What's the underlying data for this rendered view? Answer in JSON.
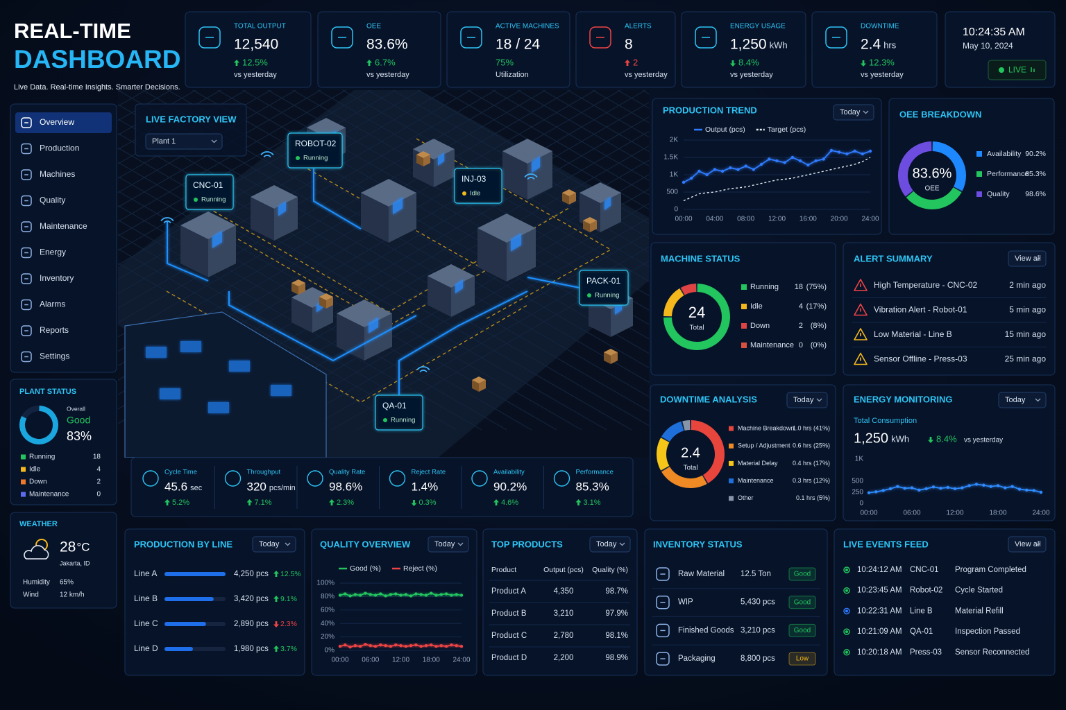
{
  "header": {
    "title": "REAL-TIME",
    "title_accent": "DASHBOARD",
    "tagline": "Live Data. Real-time Insights. Smarter Decisions."
  },
  "kpis": [
    {
      "label": "TOTAL OUTPUT",
      "value": "12,540",
      "change": "12.5%",
      "trend": "up",
      "color": "#22c55e",
      "note": "vs yesterday"
    },
    {
      "label": "OEE",
      "value": "83.6%",
      "change": "6.7%",
      "trend": "up",
      "color": "#22c55e",
      "note": "vs yesterday"
    },
    {
      "label": "ACTIVE MACHINES",
      "value": "18 / 24",
      "change": "75%",
      "color": "#22c55e",
      "note": "Utilization"
    },
    {
      "label": "ALERTS",
      "value": "8",
      "change": "2",
      "trend": "up",
      "color": "#ef4444",
      "note": "vs yesterday"
    },
    {
      "label": "ENERGY USAGE",
      "value": "1,250",
      "unit": "kWh",
      "change": "8.4%",
      "trend": "down",
      "color": "#22c55e",
      "note": "vs yesterday"
    },
    {
      "label": "DOWNTIME",
      "value": "2.4",
      "unit": "hrs",
      "change": "12.3%",
      "trend": "down",
      "color": "#22c55e",
      "note": "vs yesterday"
    }
  ],
  "clock": {
    "time": "10:24:35 AM",
    "date": "May 10, 2024",
    "status": "LIVE"
  },
  "nav": {
    "active": 0,
    "items": [
      "Overview",
      "Production",
      "Machines",
      "Quality",
      "Maintenance",
      "Energy",
      "Inventory",
      "Alarms",
      "Reports",
      "Settings"
    ]
  },
  "plant_status": {
    "title": "PLANT STATUS",
    "overall_label": "Overall",
    "status": "Good",
    "score": 83,
    "score_label": "83%",
    "items": [
      {
        "label": "Running",
        "count": 18,
        "color": "#22c55e"
      },
      {
        "label": "Idle",
        "count": 4,
        "color": "#f5b81c"
      },
      {
        "label": "Down",
        "count": 2,
        "color": "#f0782a"
      },
      {
        "label": "Maintenance",
        "count": 0,
        "color": "#5b6cf0"
      }
    ]
  },
  "weather": {
    "title": "WEATHER",
    "temperature": "28",
    "unit": "°C",
    "location": "Jakarta, ID",
    "rows": [
      {
        "label": "Humidity",
        "value": "65%"
      },
      {
        "label": "Wind",
        "value": "12 km/h"
      }
    ]
  },
  "factory": {
    "title": "LIVE FACTORY VIEW",
    "site": "Plant 1",
    "machines": [
      {
        "name": "CNC-01",
        "status": "Running",
        "color": "#22c55e"
      },
      {
        "name": "ROBOT-02",
        "status": "Running",
        "color": "#22c55e"
      },
      {
        "name": "INJ-03",
        "status": "Idle",
        "color": "#f5b81c"
      },
      {
        "name": "PACK-01",
        "status": "Running",
        "color": "#22c55e"
      },
      {
        "name": "QA-01",
        "status": "Running",
        "color": "#22c55e"
      }
    ]
  },
  "metrics": [
    {
      "label": "Cycle Time",
      "value": "45.6",
      "unit": "sec",
      "change": "5.2%",
      "trend": "up"
    },
    {
      "label": "Throughput",
      "value": "320",
      "unit": "pcs/min",
      "change": "7.1%",
      "trend": "up"
    },
    {
      "label": "Quality Rate",
      "value": "98.6%",
      "change": "2.3%",
      "trend": "up"
    },
    {
      "label": "Reject Rate",
      "value": "1.4%",
      "change": "0.3%",
      "trend": "down"
    },
    {
      "label": "Availability",
      "value": "90.2%",
      "change": "4.6%",
      "trend": "up"
    },
    {
      "label": "Performance",
      "value": "85.3%",
      "change": "3.1%",
      "trend": "up"
    }
  ],
  "oee": {
    "title": "OEE BREAKDOWN",
    "center": "83.6%",
    "center_label": "OEE",
    "items": [
      {
        "label": "Availability",
        "value": 90.2,
        "value_label": "90.2%",
        "color": "#1e88ff"
      },
      {
        "label": "Performance",
        "value": 85.3,
        "value_label": "85.3%",
        "color": "#22c55e"
      },
      {
        "label": "Quality",
        "value": 98.6,
        "value_label": "98.6%",
        "color": "#6d4de0"
      }
    ]
  },
  "machine_status": {
    "title": "MACHINE STATUS",
    "total": 24,
    "total_label": "Total",
    "items": [
      {
        "label": "Running",
        "count": 18,
        "share": "(75%)",
        "color": "#22c55e"
      },
      {
        "label": "Idle",
        "count": 4,
        "share": "(17%)",
        "color": "#f5b81c"
      },
      {
        "label": "Down",
        "count": 2,
        "share": "(8%)",
        "color": "#e04343"
      },
      {
        "label": "Maintenance",
        "count": 0,
        "share": "(0%)",
        "color": "#d9503f"
      }
    ]
  },
  "alerts": {
    "title": "ALERT SUMMARY",
    "action": "View all",
    "items": [
      {
        "text": "High Temperature - CNC-02",
        "time": "2 min ago",
        "color": "#ef4444"
      },
      {
        "text": "Vibration Alert - Robot-01",
        "time": "5 min ago",
        "color": "#ef4444"
      },
      {
        "text": "Low Material - Line B",
        "time": "15 min ago",
        "color": "#f5b81c"
      },
      {
        "text": "Sensor Offline - Press-03",
        "time": "25 min ago",
        "color": "#f5b81c"
      }
    ]
  },
  "downtime": {
    "title": "DOWNTIME ANALYSIS",
    "range": "Today",
    "total": "2.4",
    "total_label": "Total",
    "items": [
      {
        "label": "Machine Breakdown",
        "hours": 1.0,
        "detail": "1.0 hrs (41%)",
        "color": "#e8453c"
      },
      {
        "label": "Setup / Adjustment",
        "hours": 0.6,
        "detail": "0.6 hrs (25%)",
        "color": "#f08a24"
      },
      {
        "label": "Material Delay",
        "hours": 0.4,
        "detail": "0.4 hrs (17%)",
        "color": "#f5c518"
      },
      {
        "label": "Maintenance",
        "hours": 0.3,
        "detail": "0.3 hrs (12%)",
        "color": "#1e6fd9"
      },
      {
        "label": "Other",
        "hours": 0.1,
        "detail": "0.1 hrs (5%)",
        "color": "#8795a8"
      }
    ]
  },
  "energy": {
    "subtitle": "Total Consumption",
    "value": "1,250",
    "unit": "kWh",
    "change": "8.4%",
    "trend": "down",
    "note": "vs yesterday"
  },
  "production_by_line": {
    "title": "PRODUCTION BY LINE",
    "range": "Today",
    "rows": [
      {
        "line": "Line A",
        "output": 4250,
        "output_label": "4,250 pcs",
        "change": "12.5%",
        "trend": "up",
        "color": "#22c55e"
      },
      {
        "line": "Line B",
        "output": 3420,
        "output_label": "3,420 pcs",
        "change": "9.1%",
        "trend": "up",
        "color": "#22c55e"
      },
      {
        "line": "Line C",
        "output": 2890,
        "output_label": "2,890 pcs",
        "change": "2.3%",
        "trend": "down",
        "color": "#ef4444"
      },
      {
        "line": "Line D",
        "output": 1980,
        "output_label": "1,980 pcs",
        "change": "3.7%",
        "trend": "up",
        "color": "#22c55e"
      }
    ]
  },
  "top_products": {
    "title": "TOP PRODUCTS",
    "range": "Today",
    "columns": [
      "Product",
      "Output (pcs)",
      "Quality (%)"
    ],
    "rows": [
      [
        "Product A",
        "4,350",
        "98.7%"
      ],
      [
        "Product B",
        "3,210",
        "97.9%"
      ],
      [
        "Product C",
        "2,780",
        "98.1%"
      ],
      [
        "Product D",
        "2,200",
        "98.9%"
      ]
    ]
  },
  "inventory": {
    "title": "INVENTORY STATUS",
    "rows": [
      {
        "item": "Raw Material",
        "quantity": "12.5 Ton",
        "status": "Good",
        "color": "#22c55e"
      },
      {
        "item": "WIP",
        "quantity": "5,430 pcs",
        "status": "Good",
        "color": "#22c55e"
      },
      {
        "item": "Finished Goods",
        "quantity": "3,210 pcs",
        "status": "Good",
        "color": "#22c55e"
      },
      {
        "item": "Packaging",
        "quantity": "8,800 pcs",
        "status": "Low",
        "color": "#f5b81c"
      }
    ]
  },
  "events": {
    "title": "LIVE EVENTS FEED",
    "action": "View all",
    "items": [
      {
        "time": "10:24:12 AM",
        "source": "CNC-01",
        "message": "Program Completed",
        "color": "#22c55e"
      },
      {
        "time": "10:23:45 AM",
        "source": "Robot-02",
        "message": "Cycle Started",
        "color": "#22c55e"
      },
      {
        "time": "10:22:31 AM",
        "source": "Line B",
        "message": "Material Refill",
        "color": "#2f7bff"
      },
      {
        "time": "10:21:09 AM",
        "source": "QA-01",
        "message": "Inspection Passed",
        "color": "#22c55e"
      },
      {
        "time": "10:20:18 AM",
        "source": "Press-03",
        "message": "Sensor Reconnected",
        "color": "#22c55e"
      }
    ]
  },
  "chart_data": [
    {
      "type": "line",
      "title": "PRODUCTION TREND",
      "range": "Today",
      "grid": true,
      "x": [
        0,
        1,
        2,
        3,
        4,
        5,
        6,
        7,
        8,
        9,
        10,
        11,
        12,
        13,
        14,
        15,
        16,
        17,
        18,
        19,
        20,
        21,
        22,
        23,
        24
      ],
      "xlim": [
        0,
        24
      ],
      "xticks": [
        {
          "value": 0,
          "label": "00:00"
        },
        {
          "value": 4,
          "label": "04:00"
        },
        {
          "value": 8,
          "label": "08:00"
        },
        {
          "value": 12,
          "label": "12:00"
        },
        {
          "value": 16,
          "label": "16:00"
        },
        {
          "value": 20,
          "label": "20:00"
        },
        {
          "value": 24,
          "label": "24:00"
        }
      ],
      "ylim": [
        0,
        2000
      ],
      "yticks": [
        0,
        500,
        {
          "value": 1000,
          "label": "1K"
        },
        {
          "value": 1500,
          "label": "1.5K"
        },
        {
          "value": 2000,
          "label": "2K"
        }
      ],
      "series": [
        {
          "name": "Output (pcs)",
          "color": "#2f7bff",
          "markers": true,
          "values": [
            780,
            900,
            1100,
            1000,
            1150,
            1100,
            1200,
            1150,
            1250,
            1150,
            1300,
            1450,
            1400,
            1350,
            1500,
            1400,
            1280,
            1400,
            1450,
            1700,
            1650,
            1600,
            1680,
            1600,
            1680
          ]
        },
        {
          "name": "Target (pcs)",
          "color": "#e6edf7",
          "style": "dashed",
          "values": [
            250,
            350,
            450,
            480,
            500,
            550,
            600,
            620,
            650,
            700,
            750,
            800,
            850,
            870,
            900,
            950,
            1000,
            1050,
            1100,
            1150,
            1200,
            1250,
            1300,
            1380,
            1500
          ]
        }
      ]
    },
    {
      "type": "line",
      "title": "ENERGY MONITORING",
      "range": "Today",
      "grid": false,
      "x": [
        0,
        1,
        2,
        3,
        4,
        5,
        6,
        7,
        8,
        9,
        10,
        11,
        12,
        13,
        14,
        15,
        16,
        17,
        18,
        19,
        20,
        21,
        22,
        23,
        24
      ],
      "xlim": [
        0,
        24
      ],
      "xticks": [
        {
          "value": 0,
          "label": "00:00"
        },
        {
          "value": 6,
          "label": "06:00"
        },
        {
          "value": 12,
          "label": "12:00"
        },
        {
          "value": 18,
          "label": "18:00"
        },
        {
          "value": 24,
          "label": "24:00"
        }
      ],
      "ylim": [
        0,
        1000
      ],
      "yticks": [
        0,
        250,
        500,
        {
          "value": 1000,
          "label": "1K"
        }
      ],
      "series": [
        {
          "name": "Energy (kWh)",
          "color": "#2f8bff",
          "markers": true,
          "values": [
            240,
            260,
            290,
            330,
            380,
            340,
            350,
            300,
            330,
            370,
            340,
            360,
            330,
            350,
            400,
            430,
            410,
            380,
            400,
            350,
            380,
            320,
            300,
            290,
            250
          ]
        }
      ]
    },
    {
      "type": "line",
      "title": "QUALITY OVERVIEW",
      "range": "Today",
      "grid": true,
      "x": [
        0,
        1,
        2,
        3,
        4,
        5,
        6,
        7,
        8,
        9,
        10,
        11,
        12,
        13,
        14,
        15,
        16,
        17,
        18,
        19,
        20,
        21,
        22,
        23,
        24
      ],
      "xlim": [
        0,
        24
      ],
      "xticks": [
        {
          "value": 0,
          "label": "00:00"
        },
        {
          "value": 6,
          "label": "06:00"
        },
        {
          "value": 12,
          "label": "12:00"
        },
        {
          "value": 18,
          "label": "18:00"
        },
        {
          "value": 24,
          "label": "24:00"
        }
      ],
      "ylim": [
        0,
        100
      ],
      "yticks": [
        {
          "value": 0,
          "label": "0%"
        },
        {
          "value": 20,
          "label": "20%"
        },
        {
          "value": 40,
          "label": "40%"
        },
        {
          "value": 60,
          "label": "60%"
        },
        {
          "value": 80,
          "label": "80%"
        },
        {
          "value": 100,
          "label": "100%"
        }
      ],
      "series": [
        {
          "name": "Good (%)",
          "color": "#22c55e",
          "markers": true,
          "values": [
            82,
            84,
            81,
            83,
            82,
            85,
            83,
            82,
            84,
            81,
            83,
            84,
            82,
            83,
            81,
            84,
            83,
            82,
            85,
            82,
            83,
            84,
            82,
            83,
            82
          ]
        },
        {
          "name": "Reject (%)",
          "color": "#ef4444",
          "markers": true,
          "values": [
            6,
            8,
            5,
            7,
            6,
            9,
            7,
            6,
            8,
            7,
            6,
            8,
            7,
            6,
            7,
            8,
            6,
            7,
            8,
            6,
            7,
            6,
            8,
            7,
            6
          ]
        }
      ]
    }
  ]
}
